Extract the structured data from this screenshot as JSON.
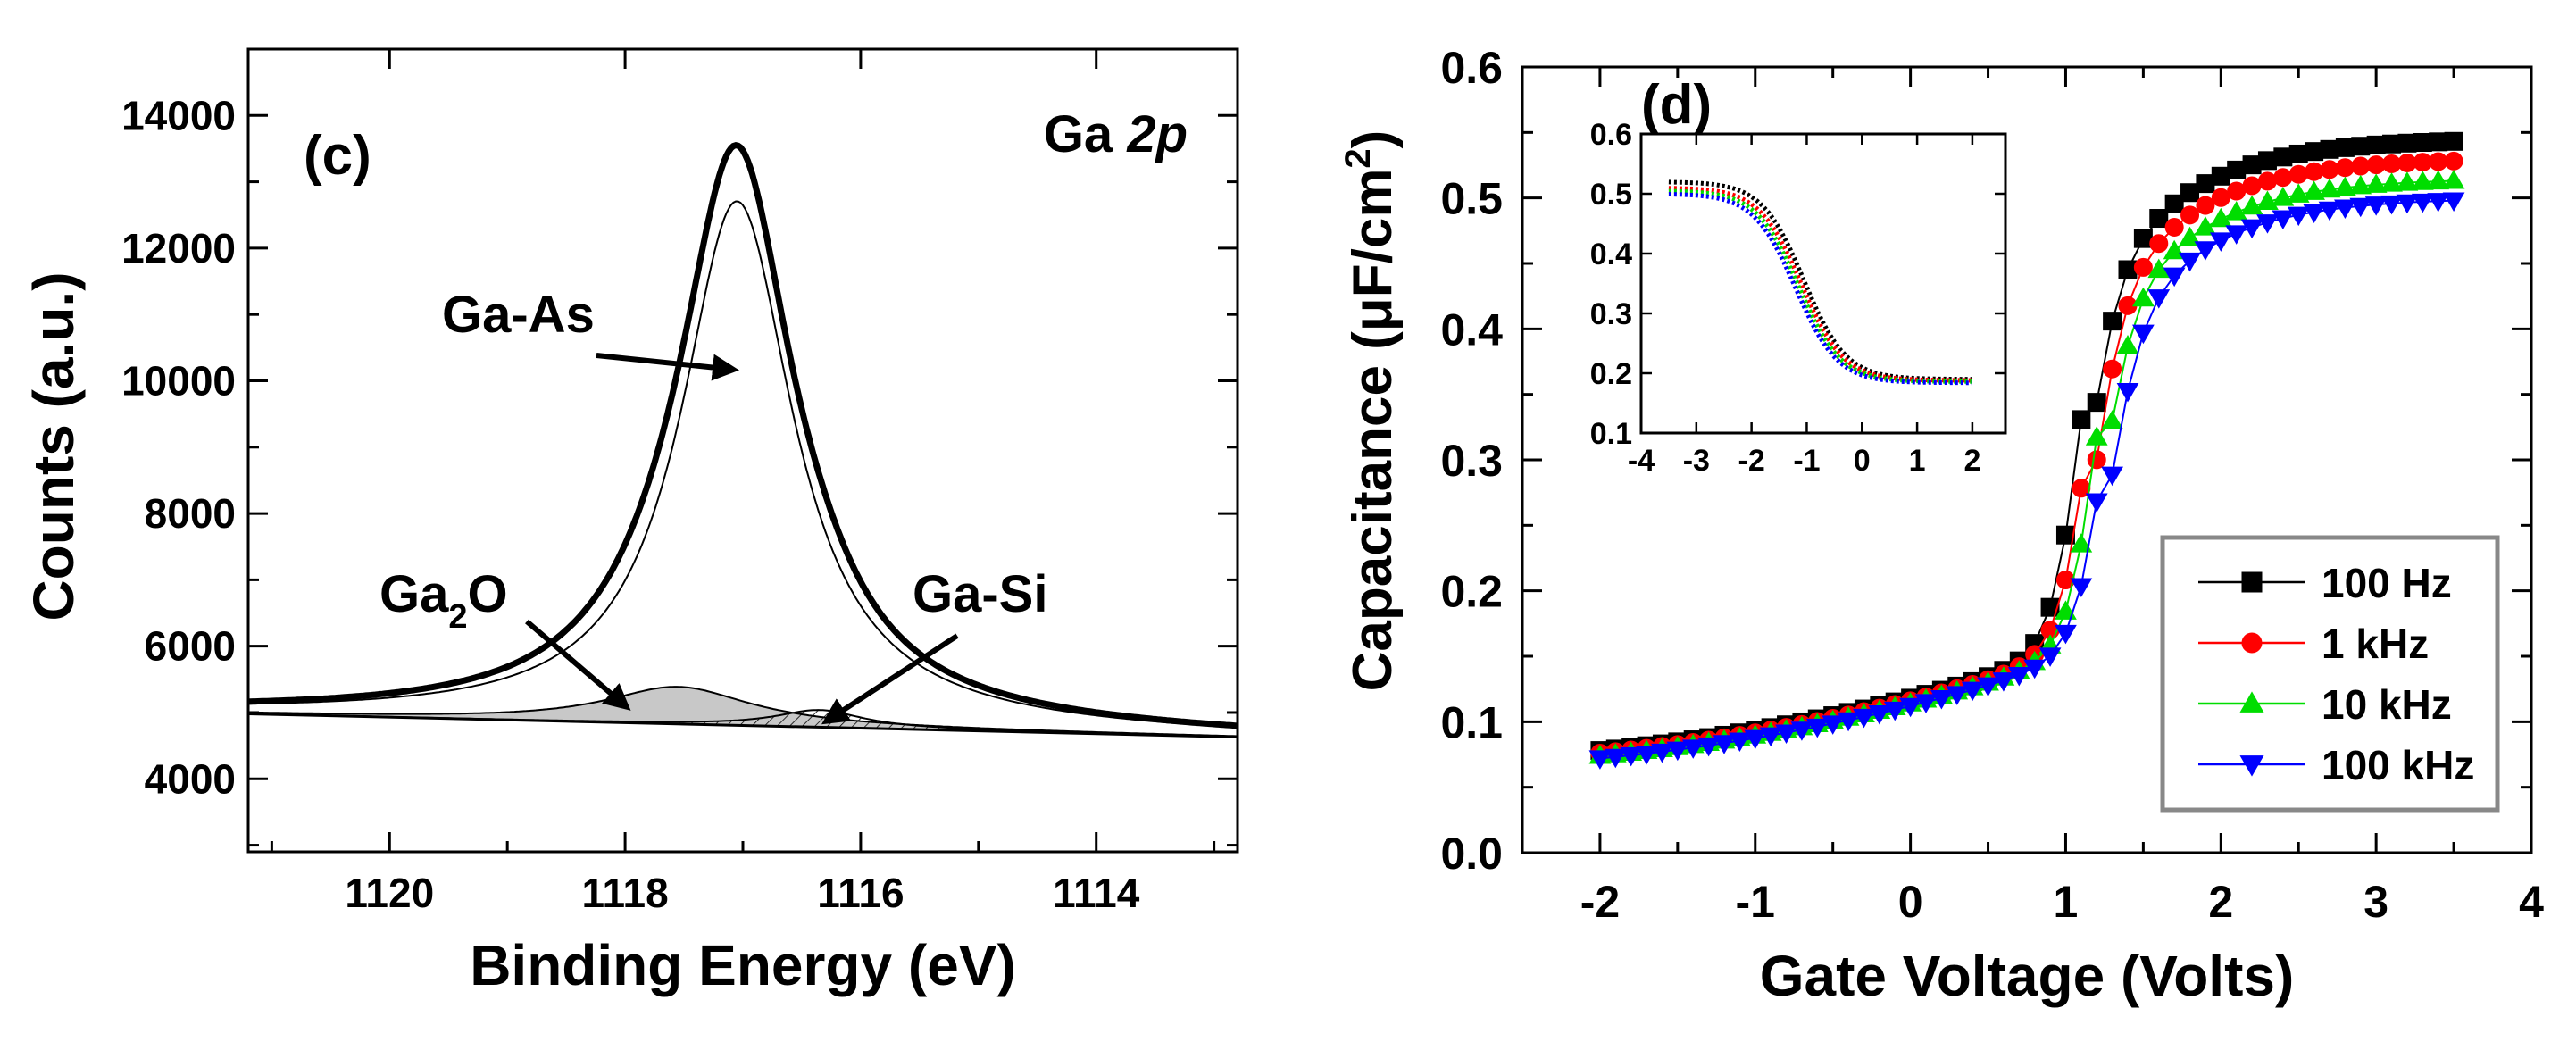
{
  "chart_data": [
    {
      "type": "line",
      "panel_label": "(c)",
      "title_prefix": "Ga ",
      "title_suffix": "2p",
      "xlabel": "Binding Energy (eV)",
      "ylabel": "Counts (a.u.)",
      "xlim": [
        1121.2,
        1112.8
      ],
      "ylim": [
        2900,
        15000
      ],
      "x_reversed": true,
      "xticks": [
        1120,
        1118,
        1116,
        1114
      ],
      "yticks": [
        4000,
        6000,
        8000,
        10000,
        12000,
        14000
      ],
      "annotations": {
        "ga_as": "Ga-As",
        "ga2o_main": "Ga",
        "ga2o_sub": "2",
        "ga2o_tail": "O",
        "ga_si": "Ga-Si"
      },
      "components": [
        {
          "name": "Ga-As",
          "center": 1117.05,
          "amplitude": 7900,
          "width": 0.58,
          "style": "thin"
        },
        {
          "name": "Ga2O",
          "center": 1117.55,
          "amplitude": 560,
          "width": 0.75,
          "style": "gray-fill"
        },
        {
          "name": "Ga-Si",
          "center": 1116.35,
          "amplitude": 260,
          "width": 0.45,
          "style": "hatched"
        }
      ],
      "background": {
        "x_left": 1121.2,
        "y_left": 4980,
        "x_right": 1112.8,
        "y_right": 4630
      },
      "envelope": {
        "name": "Envelope",
        "style": "thick",
        "peak_value": 13550,
        "peak_position": 1117.05
      }
    },
    {
      "type": "scatter",
      "panel_label": "(d)",
      "xlabel": "Gate Voltage (Volts)",
      "ylabel_main": "Capacitance (μF/cm",
      "ylabel_sup": "2",
      "ylabel_end": ")",
      "xlim": [
        -2.5,
        4
      ],
      "ylim": [
        0,
        0.6
      ],
      "xticks": [
        -2,
        -1,
        0,
        1,
        2,
        3,
        4
      ],
      "yticks": [
        0.0,
        0.1,
        0.2,
        0.3,
        0.4,
        0.5,
        0.6
      ],
      "legend_position": "bottom-right",
      "x_range": [
        -2.0,
        3.5
      ],
      "point_step": 0.1,
      "series": [
        {
          "name": "100 Hz",
          "color": "#000000",
          "marker": "square",
          "c_min": 0.078,
          "c_max": 0.545,
          "v_mid": 1.12
        },
        {
          "name": "1 kHz",
          "color": "#ff0000",
          "marker": "circle",
          "c_min": 0.076,
          "c_max": 0.53,
          "v_mid": 1.17
        },
        {
          "name": "10 kHz",
          "color": "#00dd00",
          "marker": "triangle-up",
          "c_min": 0.074,
          "c_max": 0.515,
          "v_mid": 1.22
        },
        {
          "name": "100 kHz",
          "color": "#0000ff",
          "marker": "triangle-down",
          "c_min": 0.072,
          "c_max": 0.5,
          "v_mid": 1.27
        }
      ],
      "inset": {
        "xlim": [
          -4,
          2.6
        ],
        "ylim": [
          0.1,
          0.6
        ],
        "xticks": [
          -4,
          -3,
          -2,
          -1,
          0,
          1,
          2
        ],
        "yticks": [
          0.1,
          0.2,
          0.3,
          0.4,
          0.5,
          0.6
        ],
        "x_range": [
          -3.5,
          2.0
        ],
        "series": [
          {
            "name": "100 Hz",
            "color": "#000000",
            "c_hi": 0.52,
            "c_lo": 0.19,
            "v_mid": -1.05
          },
          {
            "name": "1 kHz",
            "color": "#ff0000",
            "c_hi": 0.51,
            "c_lo": 0.188,
            "v_mid": -1.1
          },
          {
            "name": "10 kHz",
            "color": "#00dd00",
            "c_hi": 0.505,
            "c_lo": 0.186,
            "v_mid": -1.15
          },
          {
            "name": "100 kHz",
            "color": "#0000ff",
            "c_hi": 0.5,
            "c_lo": 0.184,
            "v_mid": -1.2
          }
        ]
      }
    }
  ]
}
